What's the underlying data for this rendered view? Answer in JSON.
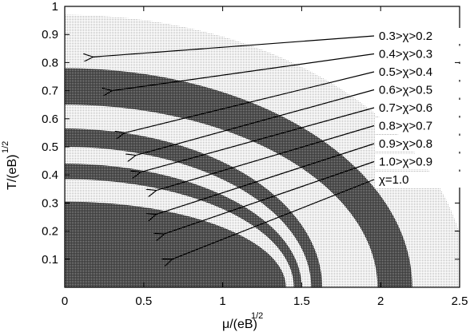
{
  "chart_data": {
    "type": "area",
    "xlabel": "μ/(eB)",
    "xlabel_sup": "1/2",
    "ylabel": "T/(eB)",
    "ylabel_sup": "1/2",
    "xlim": [
      0,
      2.5
    ],
    "ylim": [
      0,
      1
    ],
    "x_ticks": [
      "0",
      "0.5",
      "1",
      "1.5",
      "2",
      "2.5"
    ],
    "y_ticks": [
      "0.1",
      "0.2",
      "0.3",
      "0.4",
      "0.5",
      "0.6",
      "0.7",
      "0.8",
      "0.9",
      "1"
    ],
    "grid": false,
    "regions": [
      {
        "label": "0.3>χ>0.2",
        "outer_boundary": {
          "t_at_mu0": 0.97,
          "mu_at_t0": 2.55
        },
        "fill": "light-dots",
        "arrow_tip": [
          0.18,
          0.82
        ]
      },
      {
        "label": "0.4>χ>0.3",
        "outer_boundary": {
          "t_at_mu0": 0.78,
          "mu_at_t0": 2.2
        },
        "fill": "dark",
        "arrow_tip": [
          0.3,
          0.7
        ]
      },
      {
        "label": "0.5>χ>0.4",
        "outer_boundary": {
          "t_at_mu0": 0.65,
          "mu_at_t0": 1.98
        },
        "fill": "light-dots",
        "arrow_tip": [
          0.38,
          0.55
        ]
      },
      {
        "label": "0.6>χ>0.5",
        "outer_boundary": {
          "t_at_mu0": 0.565,
          "mu_at_t0": 1.63
        },
        "fill": "dark",
        "arrow_tip": [
          0.45,
          0.47
        ]
      },
      {
        "label": "0.7>χ>0.6",
        "outer_boundary": {
          "t_at_mu0": 0.5,
          "mu_at_t0": 1.56
        },
        "fill": "light-dots",
        "arrow_tip": [
          0.48,
          0.41
        ]
      },
      {
        "label": "0.8>χ>0.7",
        "outer_boundary": {
          "t_at_mu0": 0.44,
          "mu_at_t0": 1.5
        },
        "fill": "dark",
        "arrow_tip": [
          0.58,
          0.345
        ]
      },
      {
        "label": "0.9>χ>0.8",
        "outer_boundary": {
          "t_at_mu0": 0.385,
          "mu_at_t0": 1.45
        },
        "fill": "light-dots",
        "arrow_tip": [
          0.58,
          0.26
        ]
      },
      {
        "label": "1.0>χ>0.9",
        "outer_boundary": {
          "t_at_mu0": 0.335,
          "mu_at_t0": 1.42
        },
        "fill": "light-dots",
        "arrow_tip": [
          0.63,
          0.19
        ]
      },
      {
        "label": "χ=1.0",
        "outer_boundary": {
          "t_at_mu0": 0.305,
          "mu_at_t0": 1.4
        },
        "fill": "dark",
        "arrow_tip": [
          0.68,
          0.1
        ]
      }
    ]
  },
  "colors": {
    "dark_fill": "#555555",
    "light_fill": "#cfcfcf",
    "background": "#ffffff",
    "axis": "#000000"
  }
}
